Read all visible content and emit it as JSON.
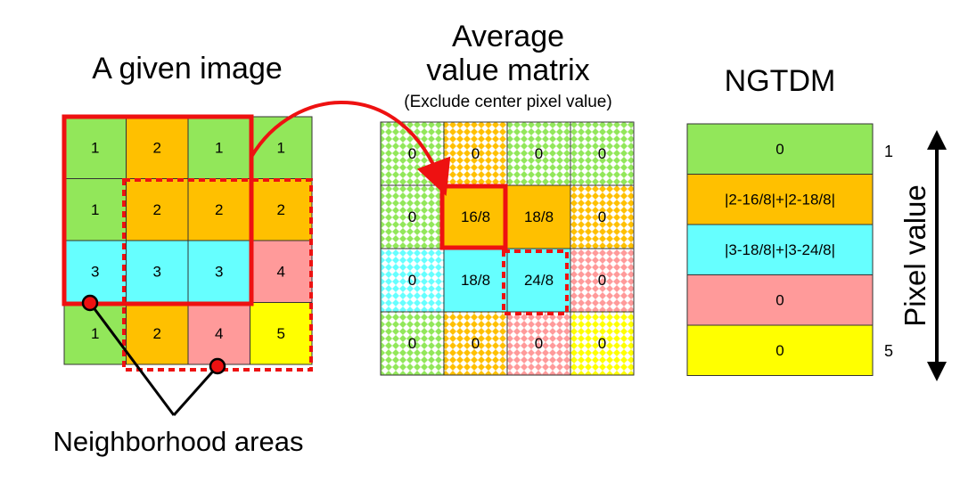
{
  "titles": {
    "given_image": "A given image",
    "average_line1": "Average",
    "average_line2": "value matrix",
    "average_sub": "(Exclude center pixel value)",
    "ngtdm": "NGTDM",
    "neighborhood": "Neighborhood areas",
    "pixel_value": "Pixel value"
  },
  "given_image": {
    "rows": [
      [
        "1",
        "2",
        "1",
        "1"
      ],
      [
        "1",
        "2",
        "2",
        "2"
      ],
      [
        "3",
        "3",
        "3",
        "4"
      ],
      [
        "1",
        "2",
        "4",
        "5"
      ]
    ]
  },
  "average_matrix": {
    "rows": [
      [
        "0",
        "0",
        "0",
        "0"
      ],
      [
        "0",
        "16/8",
        "18/8",
        "0"
      ],
      [
        "0",
        "18/8",
        "24/8",
        "0"
      ],
      [
        "0",
        "0",
        "0",
        "0"
      ]
    ]
  },
  "ngtdm": {
    "rows": [
      "0",
      "|2-16/8|+|2-18/8|",
      "|3-18/8|+|3-24/8|",
      "0",
      "0"
    ],
    "axis_start": "1",
    "axis_end": "5"
  },
  "colors": {
    "v1": "#92e75a",
    "v2": "#ffc000",
    "v3": "#66ffff",
    "v4": "#ff9a9a",
    "v5": "#ffff00",
    "highlight": "#ee1111"
  }
}
